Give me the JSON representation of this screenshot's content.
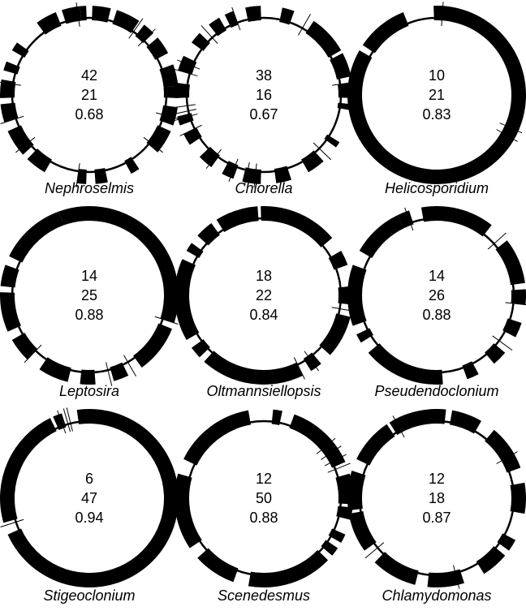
{
  "panels": [
    {
      "name": "Nephroselmis",
      "values": [
        "42",
        "21",
        "0.68"
      ],
      "blocks": [
        [
          -88,
          -76,
          1
        ],
        [
          -72,
          -56,
          1
        ],
        [
          -52,
          -44,
          1
        ],
        [
          -40,
          -28,
          1
        ],
        [
          -20,
          -6,
          1
        ],
        [
          -6,
          2,
          1
        ],
        [
          8,
          20,
          1
        ],
        [
          24,
          40,
          1
        ],
        [
          56,
          62,
          1
        ],
        [
          78,
          86,
          1
        ],
        [
          92,
          98,
          1
        ],
        [
          120,
          134,
          1
        ],
        [
          138,
          156,
          1
        ],
        [
          162,
          174,
          1
        ],
        [
          178,
          190,
          1
        ],
        [
          196,
          202,
          1
        ],
        [
          210,
          216,
          1
        ],
        [
          234,
          248,
          1
        ],
        [
          252,
          262,
          1
        ],
        [
          264,
          268,
          1
        ],
        [
          -100,
          -96,
          1
        ]
      ],
      "ticks": [
        -55,
        -45,
        15,
        38,
        98,
        142,
        162,
        188,
        262
      ]
    },
    {
      "name": "Chlorella",
      "values": [
        "38",
        "16",
        "0.67"
      ],
      "blocks": [
        [
          -78,
          -70,
          1
        ],
        [
          -56,
          -30,
          1
        ],
        [
          -28,
          -12,
          1
        ],
        [
          -8,
          2,
          1
        ],
        [
          6,
          10,
          1
        ],
        [
          32,
          36,
          1
        ],
        [
          48,
          60,
          1
        ],
        [
          72,
          82,
          1
        ],
        [
          92,
          104,
          1
        ],
        [
          110,
          118,
          1
        ],
        [
          126,
          136,
          1
        ],
        [
          146,
          154,
          1
        ],
        [
          160,
          166,
          1
        ],
        [
          178,
          188,
          1
        ],
        [
          196,
          206,
          1
        ],
        [
          216,
          224,
          1
        ],
        [
          232,
          240,
          1
        ],
        [
          244,
          250,
          1
        ],
        [
          258,
          264,
          1
        ],
        [
          -98,
          -92,
          1
        ]
      ],
      "ticks": [
        -60,
        -8,
        44,
        96,
        102,
        112,
        128,
        154,
        164,
        168,
        172,
        196,
        202,
        228,
        250
      ]
    },
    {
      "name": "Helicosporidium",
      "values": [
        "10",
        "21",
        "0.83"
      ],
      "blocks": [
        [
          -92,
          210,
          1
        ],
        [
          214,
          248,
          1
        ],
        [
          -86,
          -88,
          1
        ],
        [
          22,
          28,
          1
        ],
        [
          30,
          36,
          1
        ]
      ],
      "ticks": [
        -86,
        24,
        30
      ]
    },
    {
      "name": "Leptosira",
      "values": [
        "14",
        "25",
        "0.88"
      ],
      "blocks": [
        [
          -110,
          18,
          1
        ],
        [
          22,
          54,
          1
        ],
        [
          64,
          74,
          1
        ],
        [
          86,
          96,
          1
        ],
        [
          104,
          124,
          1
        ],
        [
          134,
          150,
          1
        ],
        [
          156,
          182,
          1
        ],
        [
          186,
          200,
          1
        ],
        [
          206,
          250,
          1
        ]
      ],
      "ticks": [
        18,
        60,
        76,
        134
      ]
    },
    {
      "name": "Oltmannsiellopsis",
      "values": [
        "18",
        "22",
        "0.84"
      ],
      "blocks": [
        [
          -114,
          -94,
          1
        ],
        [
          -92,
          -40,
          1
        ],
        [
          -30,
          -20,
          1
        ],
        [
          -6,
          6,
          1
        ],
        [
          14,
          42,
          1
        ],
        [
          50,
          58,
          1
        ],
        [
          64,
          132,
          1
        ],
        [
          136,
          144,
          1
        ],
        [
          150,
          204,
          1
        ],
        [
          210,
          216,
          1
        ],
        [
          222,
          234,
          1
        ],
        [
          238,
          248,
          1
        ]
      ],
      "ticks": [
        10,
        54,
        64
      ]
    },
    {
      "name": "Pseudendoclonium",
      "values": [
        "14",
        "26",
        "0.88"
      ],
      "blocks": [
        [
          -116,
          -108,
          1
        ],
        [
          -100,
          -52,
          1
        ],
        [
          -38,
          -8,
          1
        ],
        [
          -4,
          6,
          1
        ],
        [
          18,
          28,
          1
        ],
        [
          40,
          50,
          1
        ],
        [
          62,
          70,
          1
        ],
        [
          86,
          140,
          1
        ],
        [
          148,
          154,
          1
        ],
        [
          160,
          200,
          1
        ],
        [
          210,
          244,
          1
        ]
      ],
      "ticks": [
        -110,
        -42,
        6,
        36
      ]
    },
    {
      "name": "Stigeoclonium",
      "values": [
        "6",
        "47",
        "0.94"
      ],
      "blocks": [
        [
          -114,
          -108,
          1
        ],
        [
          -98,
          156,
          1
        ],
        [
          164,
          244,
          1
        ]
      ],
      "ticks": [
        -110,
        -106,
        -104,
        162
      ]
    },
    {
      "name": "Scenedesmus",
      "values": [
        "12",
        "50",
        "0.88"
      ],
      "blocks": [
        [
          -128,
          -100,
          1
        ],
        [
          -84,
          -78,
          1
        ],
        [
          -70,
          -24,
          1
        ],
        [
          -16,
          4,
          1
        ],
        [
          6,
          14,
          1
        ],
        [
          24,
          30,
          1
        ],
        [
          34,
          40,
          1
        ],
        [
          44,
          100,
          1
        ],
        [
          110,
          138,
          1
        ],
        [
          146,
          196,
          1
        ],
        [
          206,
          248,
          1
        ]
      ],
      "ticks": [
        -40,
        -34,
        -28,
        -22
      ]
    },
    {
      "name": "Chlamydomonas",
      "values": [
        "12",
        "18",
        "0.87"
      ],
      "blocks": [
        [
          -122,
          -84,
          1
        ],
        [
          -80,
          -60,
          1
        ],
        [
          -50,
          -20,
          1
        ],
        [
          -10,
          10,
          1
        ],
        [
          28,
          36,
          1
        ],
        [
          40,
          58,
          1
        ],
        [
          72,
          96,
          1
        ],
        [
          104,
          134,
          1
        ],
        [
          144,
          170,
          1
        ],
        [
          172,
          198,
          1
        ],
        [
          206,
          236,
          1
        ],
        [
          240,
          250,
          1
        ]
      ],
      "ticks": [
        -118,
        -30,
        76,
        140
      ]
    }
  ]
}
